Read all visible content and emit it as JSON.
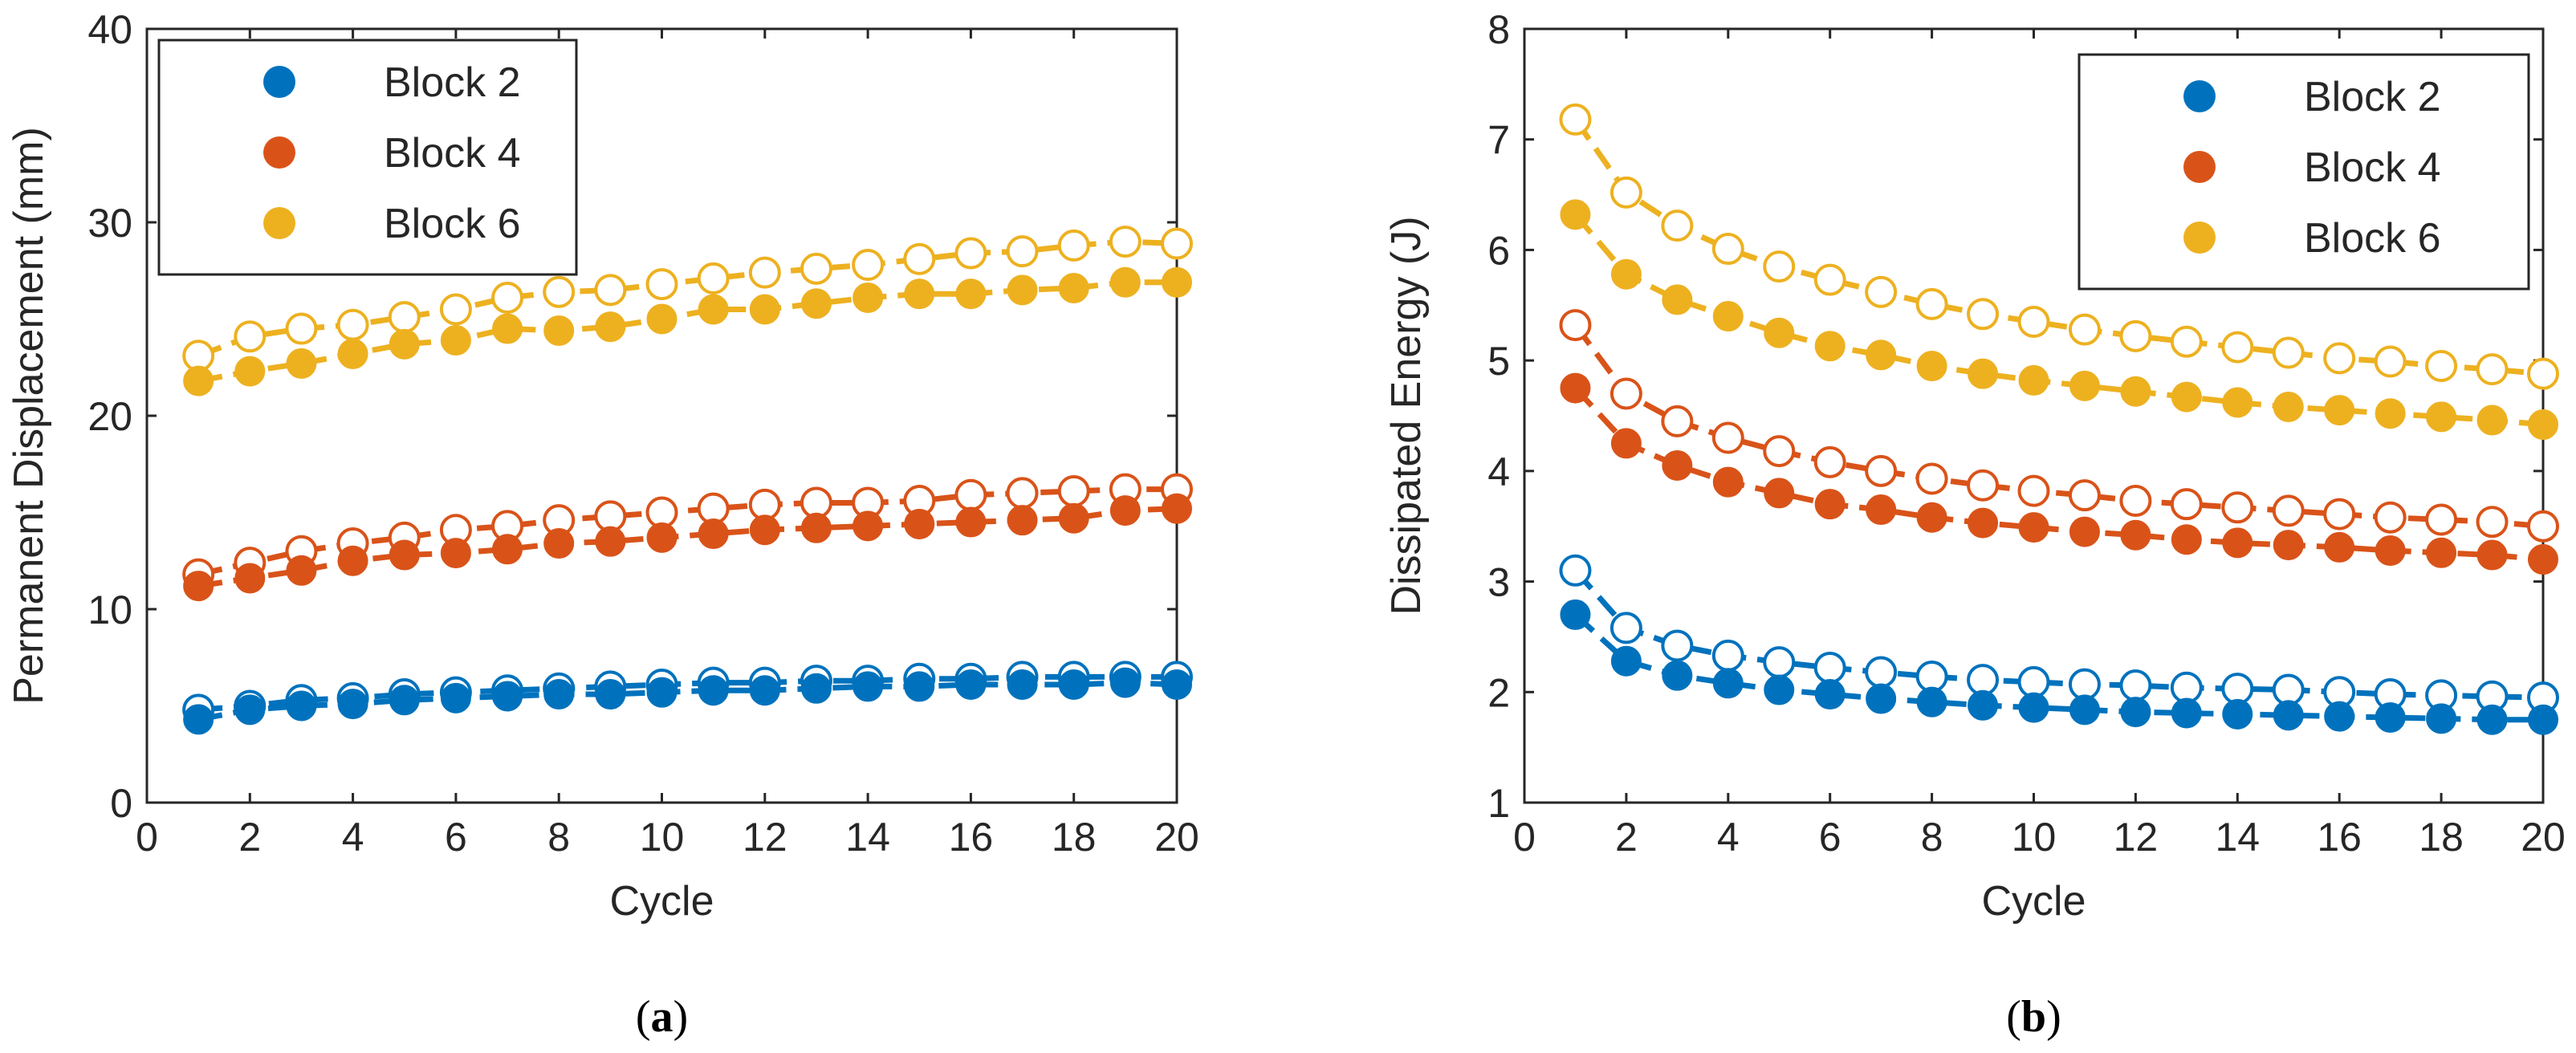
{
  "chart_data": [
    {
      "type": "scatter",
      "panel_label": "(a)",
      "panel_letter": "a",
      "xlabel": "Cycle",
      "ylabel": "Permanent Displacement (mm)",
      "xlim": [
        0,
        20
      ],
      "ylim": [
        0,
        40
      ],
      "xticks": [
        "0",
        "2",
        "4",
        "6",
        "8",
        "10",
        "12",
        "14",
        "16",
        "18",
        "20"
      ],
      "yticks": [
        "0",
        "10",
        "20",
        "30",
        "40"
      ],
      "legend_position": "top-left",
      "x": [
        1,
        2,
        3,
        4,
        5,
        6,
        7,
        8,
        9,
        10,
        11,
        12,
        13,
        14,
        15,
        16,
        17,
        18,
        19,
        20
      ],
      "series": [
        {
          "name": "Block 2",
          "color": "#0072BD",
          "filled": [
            4.3,
            4.8,
            5.0,
            5.1,
            5.3,
            5.4,
            5.5,
            5.6,
            5.6,
            5.7,
            5.8,
            5.8,
            5.9,
            6.0,
            6.0,
            6.1,
            6.1,
            6.1,
            6.2,
            6.1
          ],
          "open": [
            4.8,
            5.0,
            5.3,
            5.4,
            5.6,
            5.7,
            5.8,
            5.9,
            6.0,
            6.1,
            6.2,
            6.2,
            6.3,
            6.3,
            6.4,
            6.4,
            6.5,
            6.5,
            6.5,
            6.5
          ]
        },
        {
          "name": "Block 4",
          "color": "#D95319",
          "filled": [
            11.2,
            11.6,
            12.0,
            12.5,
            12.8,
            12.9,
            13.1,
            13.4,
            13.5,
            13.7,
            13.9,
            14.1,
            14.2,
            14.3,
            14.4,
            14.5,
            14.6,
            14.7,
            15.1,
            15.2
          ],
          "open": [
            11.8,
            12.4,
            13.0,
            13.4,
            13.7,
            14.1,
            14.3,
            14.6,
            14.8,
            15.0,
            15.2,
            15.4,
            15.5,
            15.5,
            15.6,
            15.9,
            16.0,
            16.1,
            16.2,
            16.2
          ]
        },
        {
          "name": "Block 6",
          "color": "#EDB120",
          "filled": [
            21.8,
            22.3,
            22.7,
            23.2,
            23.7,
            23.9,
            24.5,
            24.4,
            24.6,
            25.0,
            25.5,
            25.5,
            25.8,
            26.1,
            26.3,
            26.3,
            26.5,
            26.6,
            26.9,
            26.9
          ],
          "open": [
            23.1,
            24.1,
            24.5,
            24.7,
            25.1,
            25.5,
            26.1,
            26.4,
            26.5,
            26.8,
            27.1,
            27.4,
            27.6,
            27.8,
            28.1,
            28.4,
            28.5,
            28.8,
            29.0,
            28.9
          ]
        }
      ]
    },
    {
      "type": "scatter",
      "panel_label": "(b)",
      "panel_letter": "b",
      "xlabel": "Cycle",
      "ylabel": "Dissipated Energy (J)",
      "xlim": [
        0,
        20
      ],
      "ylim": [
        1,
        8
      ],
      "xticks": [
        "0",
        "2",
        "4",
        "6",
        "8",
        "10",
        "12",
        "14",
        "16",
        "18",
        "20"
      ],
      "yticks": [
        "1",
        "2",
        "3",
        "4",
        "5",
        "6",
        "7",
        "8"
      ],
      "legend_position": "top-right",
      "x": [
        1,
        2,
        3,
        4,
        5,
        6,
        7,
        8,
        9,
        10,
        11,
        12,
        13,
        14,
        15,
        16,
        17,
        18,
        19,
        20
      ],
      "series": [
        {
          "name": "Block 2",
          "color": "#0072BD",
          "filled": [
            2.7,
            2.28,
            2.15,
            2.08,
            2.02,
            1.98,
            1.94,
            1.91,
            1.88,
            1.86,
            1.84,
            1.82,
            1.81,
            1.8,
            1.79,
            1.78,
            1.77,
            1.76,
            1.75,
            1.75
          ],
          "open": [
            3.1,
            2.58,
            2.42,
            2.33,
            2.27,
            2.22,
            2.18,
            2.14,
            2.11,
            2.09,
            2.07,
            2.06,
            2.04,
            2.03,
            2.02,
            2.0,
            1.98,
            1.97,
            1.96,
            1.95
          ]
        },
        {
          "name": "Block 4",
          "color": "#D95319",
          "filled": [
            4.75,
            4.25,
            4.05,
            3.9,
            3.8,
            3.7,
            3.65,
            3.58,
            3.53,
            3.49,
            3.45,
            3.42,
            3.38,
            3.35,
            3.33,
            3.31,
            3.28,
            3.26,
            3.24,
            3.2
          ],
          "open": [
            5.32,
            4.7,
            4.45,
            4.3,
            4.18,
            4.08,
            4.0,
            3.93,
            3.87,
            3.82,
            3.78,
            3.73,
            3.7,
            3.67,
            3.64,
            3.61,
            3.58,
            3.56,
            3.54,
            3.5
          ]
        },
        {
          "name": "Block 6",
          "color": "#EDB120",
          "filled": [
            6.32,
            5.78,
            5.55,
            5.4,
            5.25,
            5.13,
            5.05,
            4.95,
            4.88,
            4.82,
            4.77,
            4.72,
            4.67,
            4.62,
            4.58,
            4.55,
            4.52,
            4.49,
            4.46,
            4.42
          ],
          "open": [
            7.18,
            6.52,
            6.22,
            6.01,
            5.85,
            5.73,
            5.62,
            5.51,
            5.42,
            5.35,
            5.28,
            5.22,
            5.17,
            5.12,
            5.07,
            5.02,
            4.99,
            4.95,
            4.92,
            4.88
          ]
        }
      ]
    }
  ]
}
